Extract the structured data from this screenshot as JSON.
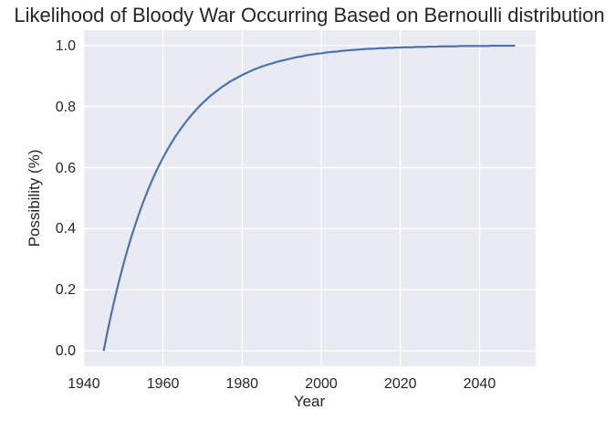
{
  "figure": {
    "background_color": "#ffffff"
  },
  "chart_data": {
    "type": "line",
    "title": "Likelihood of Bloody War Occurring Based on Bernoulli distribution",
    "xlabel": "Year",
    "ylabel": "Possibility (%)",
    "x_ticks": [
      1940,
      1960,
      1980,
      2000,
      2020,
      2040
    ],
    "x_tick_labels": [
      "1940",
      "1960",
      "1980",
      "2000",
      "2020",
      "2040"
    ],
    "y_ticks": [
      0.0,
      0.2,
      0.4,
      0.6,
      0.8,
      1.0
    ],
    "y_tick_labels": [
      "0.0",
      "0.2",
      "0.4",
      "0.6",
      "0.8",
      "1.0"
    ],
    "xlim": [
      1939.8,
      2054.2
    ],
    "ylim": [
      -0.05,
      1.05
    ],
    "grid": true,
    "legend": false,
    "style": {
      "axes_background": "#eaeaf2",
      "grid_color": "#ffffff",
      "line_color": "#4c72b0",
      "text_color": "#262626"
    },
    "series": [
      {
        "x_start": 1945,
        "x_end": 2049,
        "x_step": 1,
        "y": [
          0.0,
          0.064,
          0.125,
          0.181,
          0.234,
          0.283,
          0.33,
          0.373,
          0.413,
          0.451,
          0.487,
          0.52,
          0.551,
          0.58,
          0.607,
          0.632,
          0.656,
          0.678,
          0.699,
          0.718,
          0.736,
          0.753,
          0.769,
          0.784,
          0.798,
          0.811,
          0.823,
          0.835,
          0.845,
          0.855,
          0.865,
          0.873,
          0.882,
          0.889,
          0.896,
          0.903,
          0.909,
          0.915,
          0.921,
          0.926,
          0.931,
          0.935,
          0.939,
          0.943,
          0.947,
          0.95,
          0.953,
          0.956,
          0.959,
          0.962,
          0.964,
          0.967,
          0.969,
          0.971,
          0.973,
          0.974,
          0.976,
          0.978,
          0.979,
          0.98,
          0.982,
          0.983,
          0.984,
          0.985,
          0.986,
          0.987,
          0.988,
          0.989,
          0.989,
          0.99,
          0.991,
          0.991,
          0.992,
          0.992,
          0.993,
          0.993,
          0.994,
          0.994,
          0.994,
          0.995,
          0.995,
          0.995,
          0.996,
          0.996,
          0.996,
          0.997,
          0.997,
          0.997,
          0.997,
          0.997,
          0.998,
          0.998,
          0.998,
          0.998,
          0.998,
          0.998,
          0.998,
          0.998,
          0.999,
          0.999,
          0.999,
          0.999,
          0.999,
          0.999,
          0.999
        ]
      }
    ]
  }
}
